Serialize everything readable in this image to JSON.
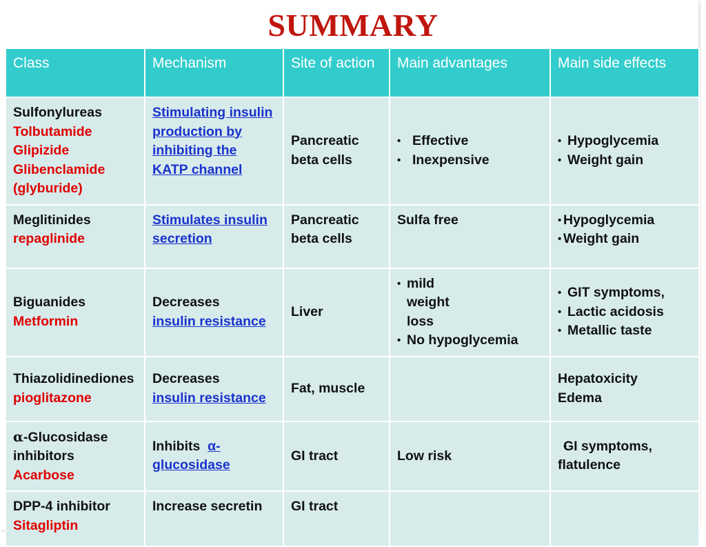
{
  "title": "SUMMARY",
  "headers": [
    "Class",
    "Mechanism",
    "Site of action",
    "Main advantages",
    "Main side effects"
  ],
  "rows": [
    {
      "class_name": "Sulfonylureas",
      "drugs": [
        "Tolbutamide",
        "Glipizide",
        "Glibenclamide (glyburide)"
      ],
      "mechanism_link": "Stimulating insulin production by inhibiting the KATP channel",
      "site": "Pancreatic beta cells",
      "advantages": [
        "Effective",
        "Inexpensive"
      ],
      "side_effects": [
        "Hypoglycemia",
        "Weight gain"
      ]
    },
    {
      "class_name": "Meglitinides",
      "drugs": [
        "repaglinide"
      ],
      "mechanism_link": "Stimulates insulin secretion",
      "site": "Pancreatic beta cells",
      "advantages_text": "Sulfa free",
      "side_effects": [
        "Hypoglycemia",
        "Weight gain"
      ]
    },
    {
      "class_name": "Biguanides",
      "drugs": [
        "Metformin"
      ],
      "mechanism_prefix": "Decreases",
      "mechanism_link": "insulin resistance",
      "site": "Liver",
      "advantages": [
        "mild weight loss",
        "No hypoglycemia"
      ],
      "side_effects": [
        "GIT symptoms,",
        "Lactic acidosis",
        "Metallic taste"
      ]
    },
    {
      "class_name": "Thiazolidinediones",
      "drugs": [
        "pioglitazone"
      ],
      "mechanism_prefix": "Decreases",
      "mechanism_link": "insulin resistance",
      "site": "Fat, muscle",
      "side_effects_lines": [
        "Hepatoxicity",
        "Edema"
      ]
    },
    {
      "class_alpha": "α",
      "class_name": "-Glucosidase inhibitors",
      "drugs": [
        "Acarbose"
      ],
      "mechanism_prefix": "Inhibits",
      "mechanism_link": "α-glucosidase",
      "site": "GI tract",
      "advantages_text": "Low risk",
      "side_effects": [
        "GI symptoms, flatulence"
      ]
    },
    {
      "class_name": "DPP-4 inhibitor",
      "drugs": [
        "Sitagliptin"
      ],
      "mechanism_text": "Increase secretin",
      "site": "GI tract"
    }
  ]
}
